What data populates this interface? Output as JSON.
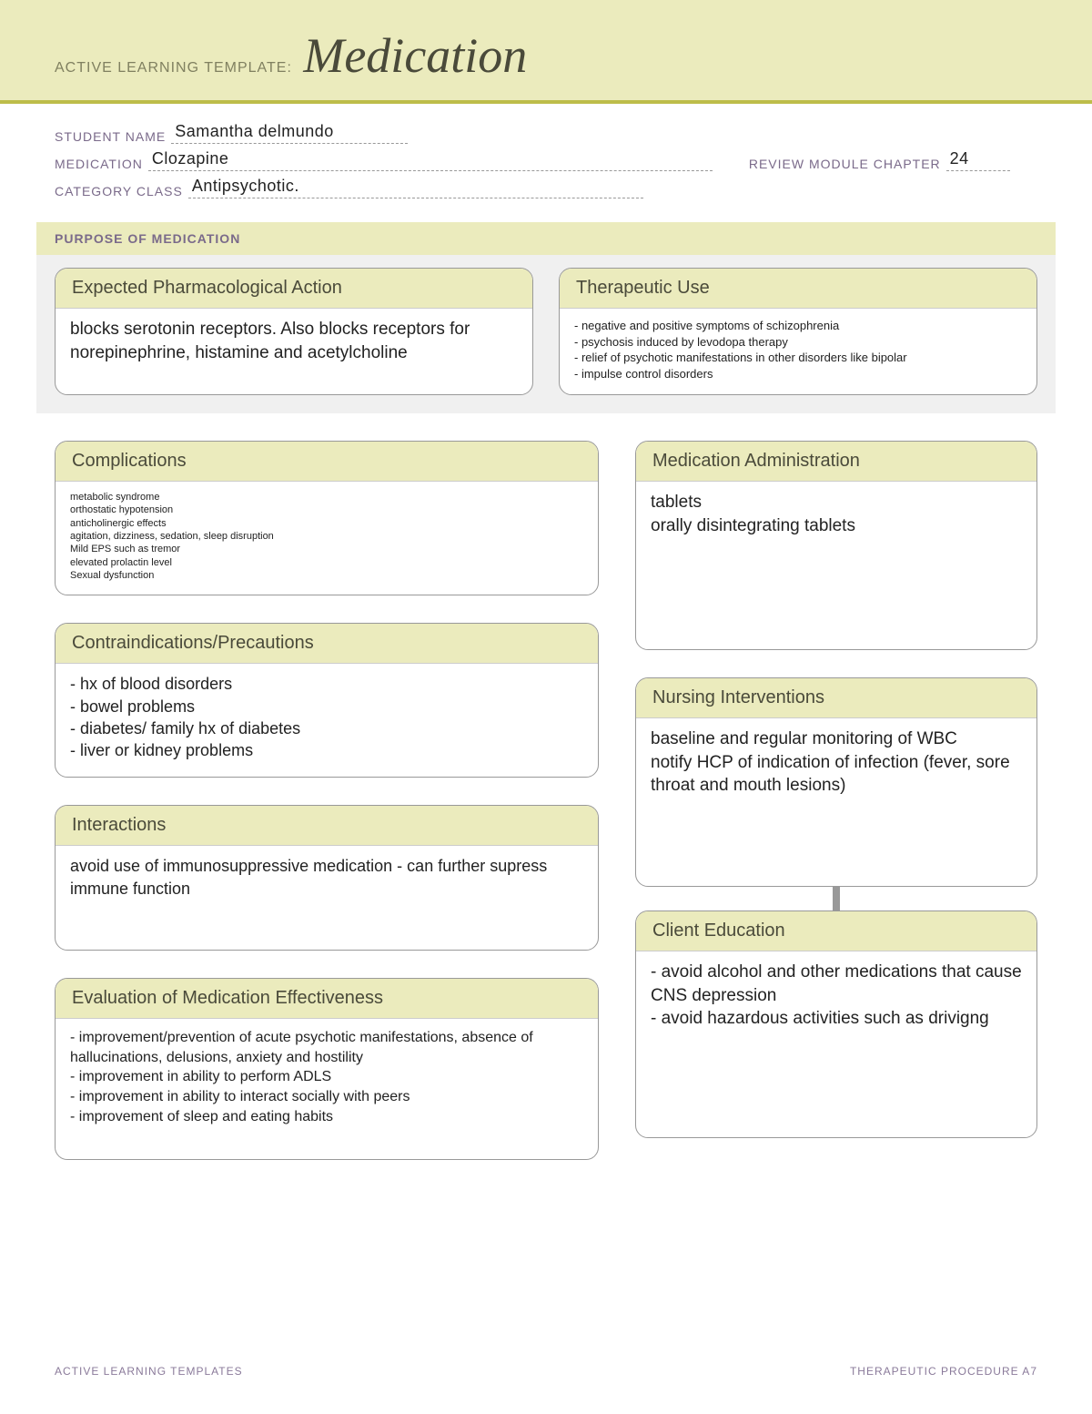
{
  "banner": {
    "label": "ACTIVE LEARNING TEMPLATE:",
    "title": "Medication"
  },
  "fields": {
    "student_label": "STUDENT NAME",
    "student_value": "Samantha delmundo",
    "medication_label": "MEDICATION",
    "medication_value": "Clozapine",
    "chapter_label": "REVIEW MODULE CHAPTER",
    "chapter_value": "24",
    "category_label": "CATEGORY CLASS",
    "category_value": "Antipsychotic."
  },
  "purpose": {
    "section_label": "PURPOSE OF MEDICATION",
    "pharm": {
      "title": "Expected Pharmacological Action",
      "body": "blocks serotonin receptors. Also blocks receptors for norepinephrine, histamine and acetylcholine"
    },
    "therapeutic": {
      "title": "Therapeutic Use",
      "body": "- negative and positive symptoms of schizophrenia\n- psychosis induced by levodopa therapy\n- relief of psychotic manifestations in other disorders like bipolar\n- impulse control disorders"
    }
  },
  "cards": {
    "complications": {
      "title": "Complications",
      "body": "metabolic syndrome\northostatic hypotension\nanticholinergic effects\nagitation, dizziness, sedation, sleep disruption\nMild EPS such as tremor\nelevated prolactin level\nSexual dysfunction"
    },
    "contra": {
      "title": "Contraindications/Precautions",
      "body": "- hx of blood disorders\n- bowel problems\n- diabetes/ family hx of diabetes\n- liver or kidney problems"
    },
    "interactions": {
      "title": "Interactions",
      "body": "avoid use of immunosuppressive medication - can further supress immune function"
    },
    "evaluation": {
      "title": "Evaluation of Medication Effectiveness",
      "body": "- improvement/prevention of acute psychotic manifestations, absence of hallucinations, delusions, anxiety and hostility\n- improvement in ability to perform ADLS\n- improvement in ability to interact socially with peers\n- improvement of sleep and eating habits"
    },
    "admin": {
      "title": "Medication Administration",
      "body": "tablets\norally disintegrating tablets"
    },
    "nursing": {
      "title": "Nursing Interventions",
      "body": "baseline and regular monitoring of WBC\nnotify HCP of indication of infection (fever, sore throat and mouth lesions)"
    },
    "client": {
      "title": "Client Education",
      "body": "- avoid alcohol and other medications that cause CNS depression\n- avoid hazardous activities such as drivigng"
    }
  },
  "footer": {
    "left": "ACTIVE LEARNING TEMPLATES",
    "right": "THERAPEUTIC PROCEDURE   A7"
  }
}
